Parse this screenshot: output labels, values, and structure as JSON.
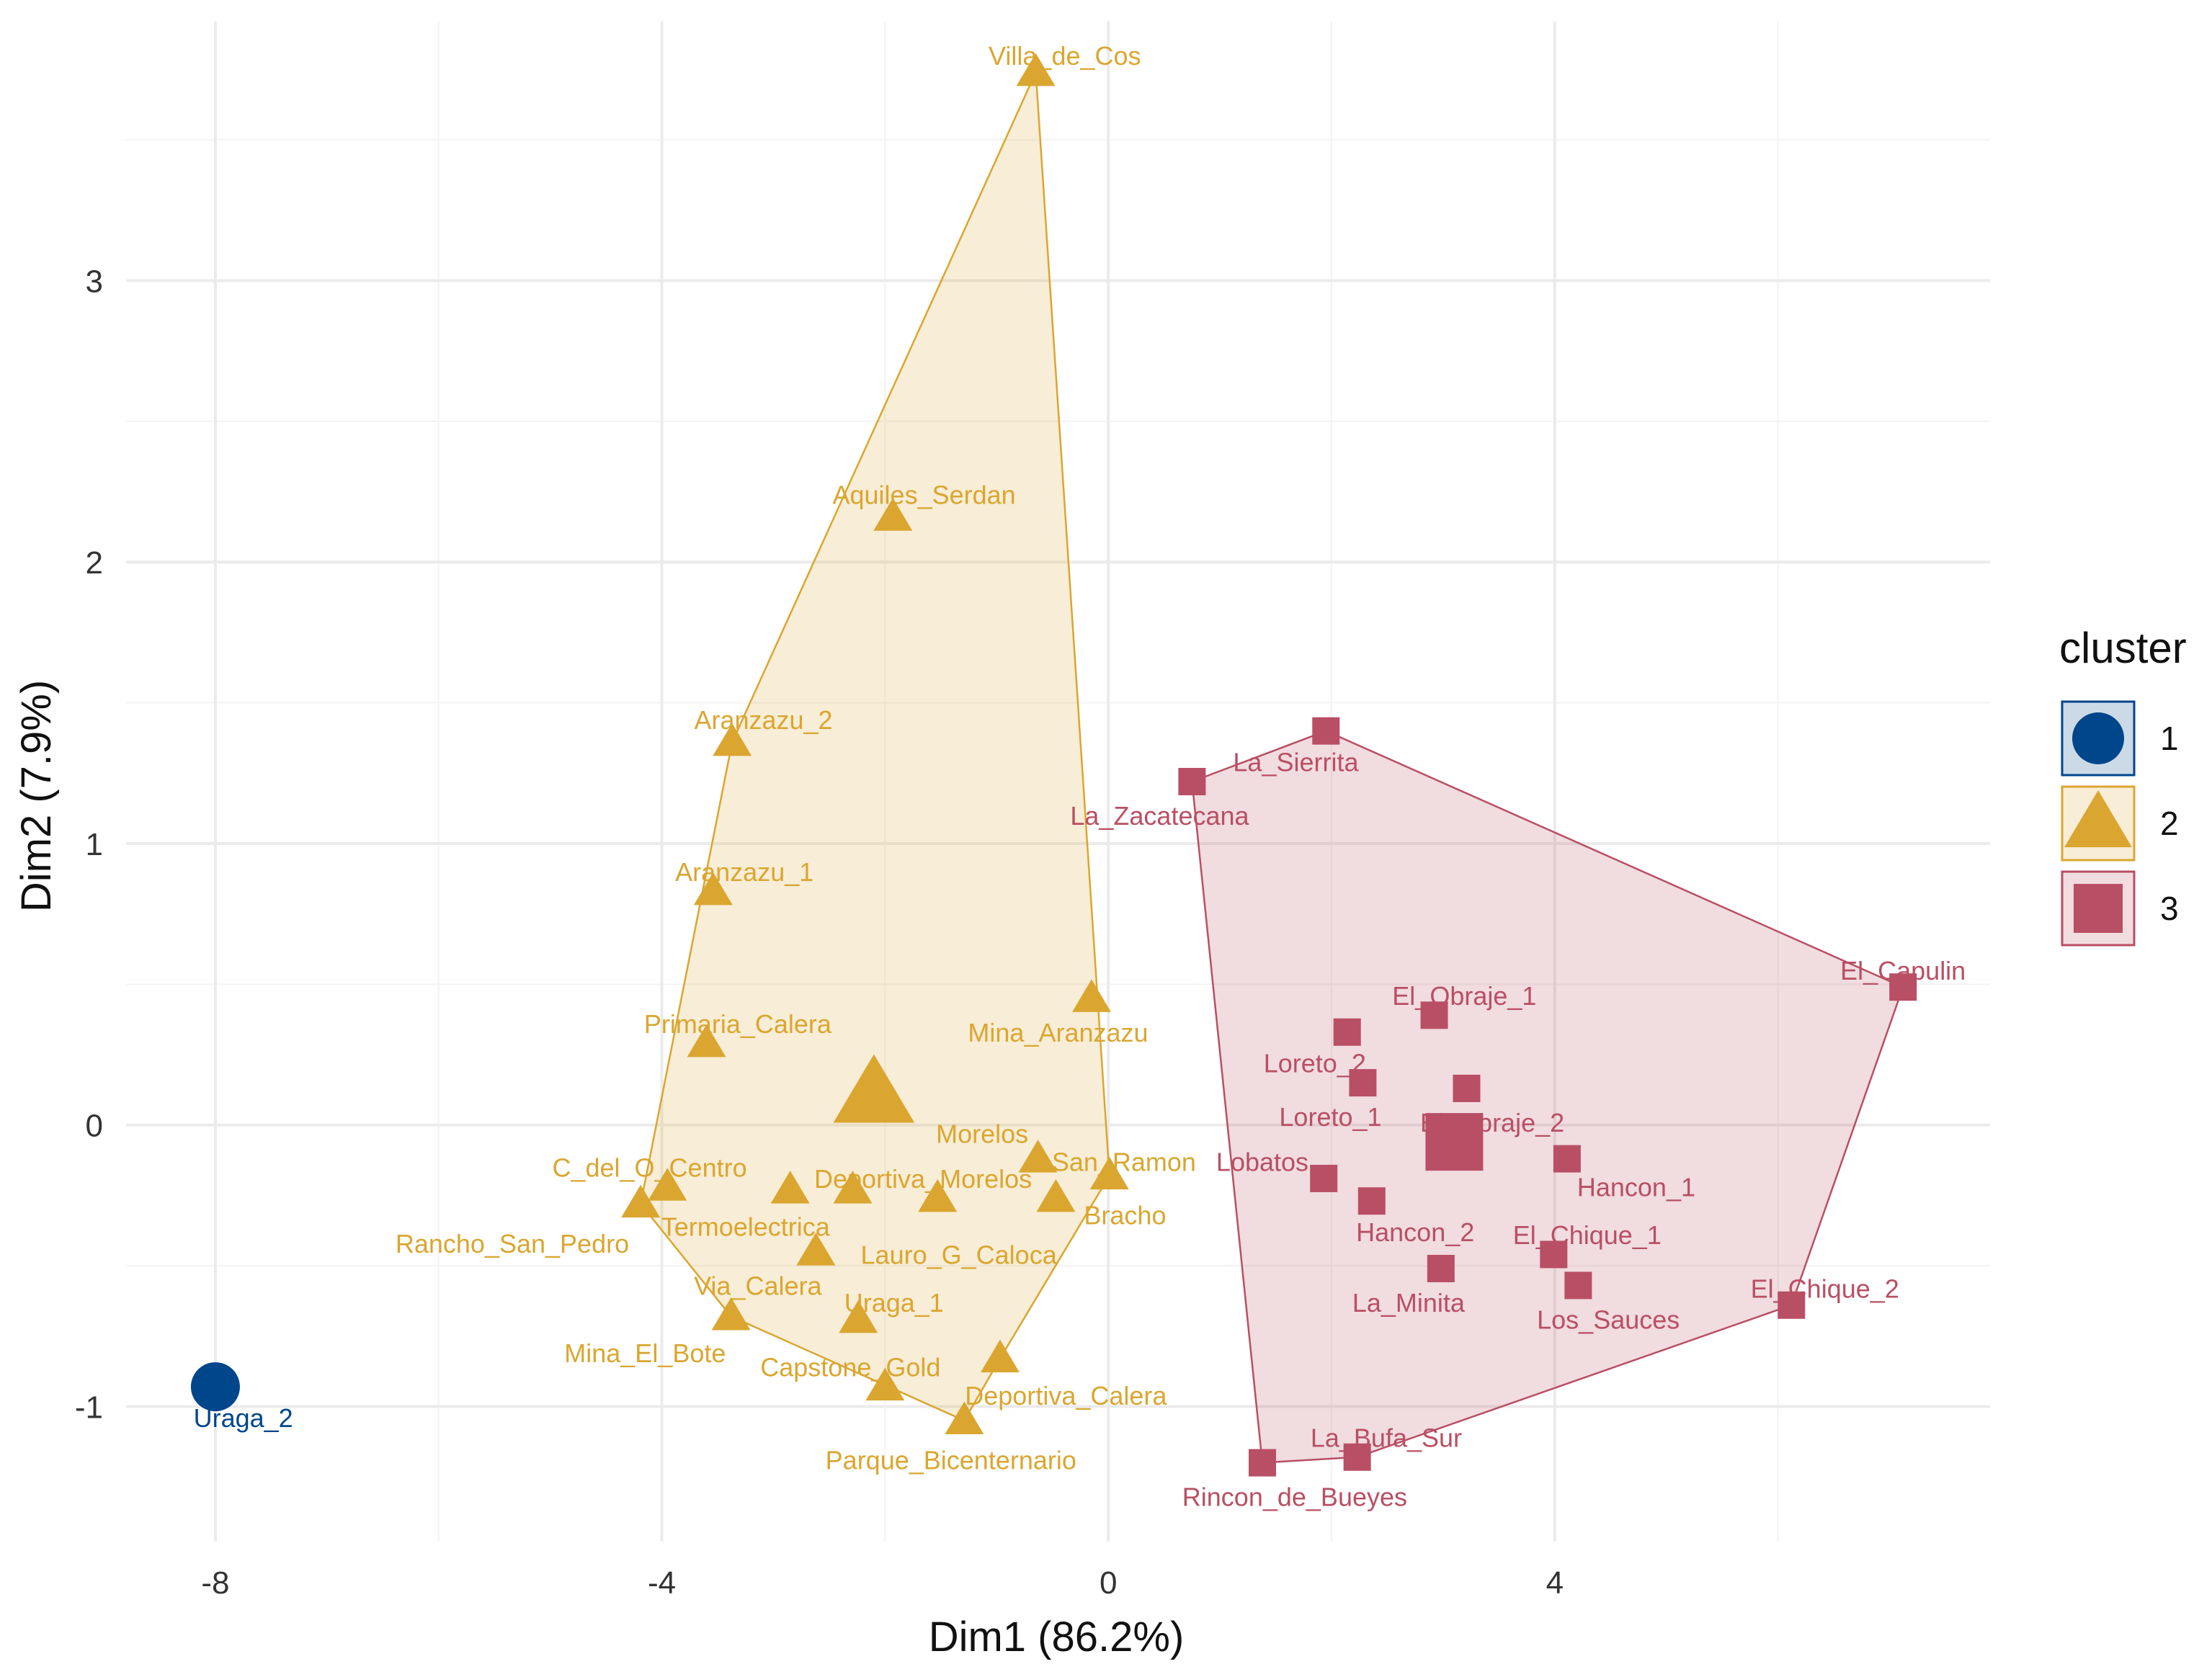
{
  "chart_data": {
    "type": "scatter",
    "title": "",
    "xlabel": "Dim1 (86.2%)",
    "ylabel": "Dim2 (7.9%)",
    "xlim": [
      -8.8,
      7.9
    ],
    "ylim": [
      -1.48,
      3.92
    ],
    "xticks": [
      -8,
      -4,
      0,
      4
    ],
    "yticks": [
      -1,
      0,
      1,
      2,
      3
    ],
    "xtick_labels": [
      "-8",
      "-4",
      "0",
      "4"
    ],
    "ytick_labels": [
      "-1",
      "0",
      "1",
      "2",
      "3"
    ],
    "legend": {
      "title": "cluster",
      "position": "right",
      "entries": [
        {
          "label": "1",
          "shape": "circle",
          "color": "#00468B"
        },
        {
          "label": "2",
          "shape": "triangle",
          "color": "#DAA630"
        },
        {
          "label": "3",
          "shape": "square",
          "color": "#B94F64"
        }
      ]
    },
    "series": [
      {
        "name": "1",
        "shape": "circle",
        "color": "#00468B",
        "hull": false,
        "centroid": {
          "x": -8.0,
          "y": -0.93
        },
        "points": [
          {
            "label": "Uraga_2",
            "x": -8.0,
            "y": -0.93,
            "lx": -7.75,
            "ly": -1.04
          }
        ]
      },
      {
        "name": "2",
        "shape": "triangle",
        "color": "#DAA630",
        "hull": true,
        "centroid": {
          "x": -2.1,
          "y": 0.11
        },
        "points": [
          {
            "label": "Villa_de_Cos",
            "x": -0.65,
            "y": 3.74,
            "lx": -0.39,
            "ly": 3.8
          },
          {
            "label": "Aquiles_Serdan",
            "x": -1.93,
            "y": 2.16,
            "lx": -1.65,
            "ly": 2.24
          },
          {
            "label": "Aranzazu_2",
            "x": -3.37,
            "y": 1.36,
            "lx": -3.09,
            "ly": 1.44
          },
          {
            "label": "Aranzazu_1",
            "x": -3.54,
            "y": 0.83,
            "lx": -3.26,
            "ly": 0.9
          },
          {
            "label": "Primaria_Calera",
            "x": -3.6,
            "y": 0.29,
            "lx": -3.32,
            "ly": 0.36
          },
          {
            "label": "Mina_Aranzazu",
            "x": -0.15,
            "y": 0.45,
            "lx": -0.45,
            "ly": 0.33
          },
          {
            "label": "Morelos",
            "x": -0.63,
            "y": -0.12,
            "lx": -1.13,
            "ly": -0.03
          },
          {
            "label": "San_Ramon",
            "x": 0.01,
            "y": -0.18,
            "lx": 0.14,
            "ly": -0.13
          },
          {
            "label": "Bracho",
            "x": -0.47,
            "y": -0.26,
            "lx": 0.15,
            "ly": -0.32
          },
          {
            "label": "C_del_O_Centro",
            "x": -3.95,
            "y": -0.22,
            "lx": -4.11,
            "ly": -0.15
          },
          {
            "label": "Deportiva_Morelos",
            "x": -2.29,
            "y": -0.23,
            "lx": -1.66,
            "ly": -0.19
          },
          {
            "label": "Termoelectrica",
            "x": -2.85,
            "y": -0.23,
            "lx": -3.25,
            "ly": -0.36
          },
          {
            "label": "Rancho_San_Pedro",
            "x": -4.19,
            "y": -0.28,
            "lx": -5.34,
            "ly": -0.42
          },
          {
            "label": "Lauro_G_Caloca",
            "x": -1.53,
            "y": -0.26,
            "lx": -1.34,
            "ly": -0.46
          },
          {
            "label": "Via_Calera",
            "x": -2.62,
            "y": -0.45,
            "lx": -3.14,
            "ly": -0.57
          },
          {
            "label": "Uraga_1",
            "x": -2.24,
            "y": -0.69,
            "lx": -1.92,
            "ly": -0.63
          },
          {
            "label": "Mina_El_Bote",
            "x": -3.38,
            "y": -0.68,
            "lx": -4.15,
            "ly": -0.81
          },
          {
            "label": "Capstone_Gold",
            "x": -2.0,
            "y": -0.93,
            "lx": -2.31,
            "ly": -0.86
          },
          {
            "label": "Deportiva_Calera",
            "x": -0.97,
            "y": -0.83,
            "lx": -0.38,
            "ly": -0.96
          },
          {
            "label": "Parque_Bicenternario",
            "x": -1.29,
            "y": -1.05,
            "lx": -1.41,
            "ly": -1.19
          }
        ],
        "hull_order": [
          "Villa_de_Cos",
          "San_Ramon",
          "Deportiva_Calera",
          "Parque_Bicenternario",
          "Mina_El_Bote",
          "Rancho_San_Pedro",
          "Aranzazu_2"
        ]
      },
      {
        "name": "3",
        "shape": "square",
        "color": "#B94F64",
        "hull": true,
        "centroid": {
          "x": 3.1,
          "y": -0.06
        },
        "points": [
          {
            "label": "La_Sierrita",
            "x": 1.95,
            "y": 1.4,
            "lx": 1.68,
            "ly": 1.29
          },
          {
            "label": "La_Zacatecana",
            "x": 0.75,
            "y": 1.22,
            "lx": 0.46,
            "ly": 1.1
          },
          {
            "label": "El_Capulin",
            "x": 7.12,
            "y": 0.49,
            "lx": 7.12,
            "ly": 0.55
          },
          {
            "label": "El_Obraje_1",
            "x": 2.92,
            "y": 0.39,
            "lx": 3.19,
            "ly": 0.46
          },
          {
            "label": "Loreto_2",
            "x": 2.14,
            "y": 0.33,
            "lx": 1.85,
            "ly": 0.22
          },
          {
            "label": "Loreto_1",
            "x": 2.28,
            "y": 0.15,
            "lx": 1.99,
            "ly": 0.03
          },
          {
            "label": "El_Obraje_2",
            "x": 3.21,
            "y": 0.13,
            "lx": 3.44,
            "ly": 0.01
          },
          {
            "label": "Lobatos",
            "x": 1.93,
            "y": -0.19,
            "lx": 1.38,
            "ly": -0.13
          },
          {
            "label": "Hancon_1",
            "x": 4.11,
            "y": -0.12,
            "lx": 4.73,
            "ly": -0.22
          },
          {
            "label": "Hancon_2",
            "x": 2.36,
            "y": -0.27,
            "lx": 2.75,
            "ly": -0.38
          },
          {
            "label": "El_Chique_1",
            "x": 3.99,
            "y": -0.46,
            "lx": 4.29,
            "ly": -0.39
          },
          {
            "label": "La_Minita",
            "x": 2.98,
            "y": -0.51,
            "lx": 2.69,
            "ly": -0.63
          },
          {
            "label": "Los_Sauces",
            "x": 4.21,
            "y": -0.57,
            "lx": 4.48,
            "ly": -0.69
          },
          {
            "label": "El_Chique_2",
            "x": 6.12,
            "y": -0.64,
            "lx": 6.42,
            "ly": -0.58
          },
          {
            "label": "La_Bufa_Sur",
            "x": 2.23,
            "y": -1.18,
            "lx": 2.49,
            "ly": -1.11
          },
          {
            "label": "Rincon_de_Bueyes",
            "x": 1.38,
            "y": -1.2,
            "lx": 1.67,
            "ly": -1.32
          }
        ],
        "hull_order": [
          "La_Sierrita",
          "El_Capulin",
          "El_Chique_2",
          "La_Bufa_Sur",
          "Rincon_de_Bueyes",
          "La_Zacatecana"
        ]
      }
    ]
  }
}
